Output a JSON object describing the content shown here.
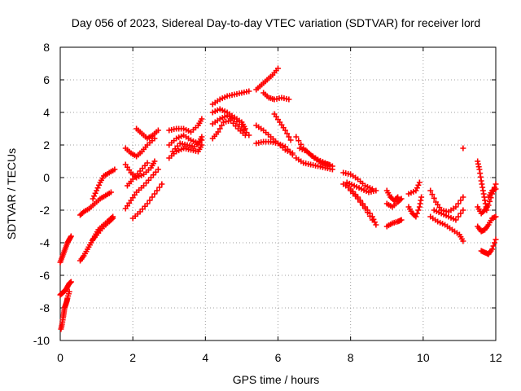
{
  "chart_data": {
    "type": "scatter",
    "title": "Day 056 of 2023, Sidereal Day-to-day VTEC variation (SDTVAR) for receiver lord",
    "xlabel": "GPS time / hours",
    "ylabel": "SDTVAR / TECUs",
    "xlim": [
      0,
      12
    ],
    "ylim": [
      -10,
      8
    ],
    "xticks": [
      0,
      2,
      4,
      6,
      8,
      10,
      12
    ],
    "yticks": [
      -10,
      -8,
      -6,
      -4,
      -2,
      0,
      2,
      4,
      6,
      8
    ],
    "grid": true,
    "marker": "+",
    "marker_color": "#ff0000",
    "series": [
      {
        "name": "s1",
        "x": [
          0.0,
          0.05,
          0.1,
          0.15,
          0.2,
          0.25,
          0.3
        ],
        "y": [
          -5.2,
          -4.9,
          -4.6,
          -4.3,
          -4.0,
          -3.8,
          -3.6
        ]
      },
      {
        "name": "s2",
        "x": [
          0.0,
          0.05,
          0.1,
          0.15,
          0.2,
          0.25,
          0.3
        ],
        "y": [
          -7.2,
          -7.1,
          -7.0,
          -6.9,
          -6.7,
          -6.5,
          -6.4
        ]
      },
      {
        "name": "s3",
        "x": [
          0.02,
          0.05,
          0.08,
          0.1,
          0.12,
          0.15,
          0.18,
          0.2,
          0.25
        ],
        "y": [
          -9.3,
          -9.0,
          -8.6,
          -8.3,
          -8.0,
          -7.8,
          -7.6,
          -7.4,
          -7.0
        ]
      },
      {
        "name": "s4",
        "x": [
          0.55,
          0.65,
          0.8,
          0.95,
          1.1,
          1.25,
          1.4
        ],
        "y": [
          -2.3,
          -2.1,
          -1.9,
          -1.6,
          -1.3,
          -1.1,
          -0.9
        ]
      },
      {
        "name": "s5",
        "x": [
          0.55,
          0.65,
          0.75,
          0.85,
          0.95,
          1.05,
          1.2,
          1.35,
          1.45
        ],
        "y": [
          -5.1,
          -4.8,
          -4.4,
          -4.0,
          -3.6,
          -3.2,
          -2.9,
          -2.6,
          -2.4
        ]
      },
      {
        "name": "s6",
        "x": [
          0.9,
          1.0,
          1.1,
          1.2,
          1.35,
          1.5
        ],
        "y": [
          -1.3,
          -0.8,
          -0.3,
          0.1,
          0.3,
          0.5
        ]
      },
      {
        "name": "s7",
        "x": [
          0.9,
          1.05,
          1.2,
          1.35,
          1.45
        ],
        "y": [
          -3.8,
          -3.4,
          -3.0,
          -2.7,
          -2.5
        ]
      },
      {
        "name": "s8",
        "x": [
          1.8,
          1.95,
          2.1,
          2.25,
          2.4,
          2.6
        ],
        "y": [
          1.8,
          1.5,
          1.3,
          1.6,
          2.0,
          2.4
        ]
      },
      {
        "name": "s9",
        "x": [
          1.8,
          1.95,
          2.1,
          2.3,
          2.5,
          2.6
        ],
        "y": [
          0.8,
          0.3,
          0.0,
          0.2,
          0.6,
          1.0
        ]
      },
      {
        "name": "s10",
        "x": [
          1.8,
          1.95,
          2.1,
          2.3,
          2.5,
          2.7
        ],
        "y": [
          -1.9,
          -1.4,
          -0.9,
          -0.5,
          0.0,
          0.5
        ]
      },
      {
        "name": "s11",
        "x": [
          1.85,
          2.0,
          2.2,
          2.4
        ],
        "y": [
          -0.5,
          -0.1,
          0.4,
          0.9
        ]
      },
      {
        "name": "s12",
        "x": [
          2.0,
          2.2,
          2.4,
          2.6,
          2.8
        ],
        "y": [
          -2.5,
          -2.1,
          -1.6,
          -1.0,
          -0.4
        ]
      },
      {
        "name": "s13",
        "x": [
          2.1,
          2.25,
          2.4,
          2.55,
          2.7
        ],
        "y": [
          3.0,
          2.7,
          2.4,
          2.6,
          2.9
        ]
      },
      {
        "name": "s14",
        "x": [
          3.0,
          3.2,
          3.4,
          3.6,
          3.8,
          3.9
        ],
        "y": [
          2.9,
          3.0,
          3.0,
          2.8,
          3.2,
          3.6
        ]
      },
      {
        "name": "s15",
        "x": [
          3.0,
          3.2,
          3.4,
          3.6,
          3.8,
          3.9
        ],
        "y": [
          2.0,
          2.4,
          2.6,
          2.3,
          2.1,
          2.5
        ]
      },
      {
        "name": "s16",
        "x": [
          3.0,
          3.2,
          3.4,
          3.6,
          3.8,
          3.9
        ],
        "y": [
          1.2,
          1.6,
          1.8,
          1.7,
          1.6,
          2.0
        ]
      },
      {
        "name": "s17",
        "x": [
          3.1,
          3.3,
          3.5,
          3.7,
          3.9
        ],
        "y": [
          1.6,
          2.1,
          2.0,
          1.9,
          2.3
        ]
      },
      {
        "name": "s18",
        "x": [
          4.2,
          4.4,
          4.6,
          4.8,
          5.0,
          5.2
        ],
        "y": [
          4.5,
          4.8,
          5.0,
          5.1,
          5.2,
          5.3
        ]
      },
      {
        "name": "s19",
        "x": [
          4.2,
          4.4,
          4.6,
          4.8,
          5.0,
          5.1
        ],
        "y": [
          4.0,
          4.2,
          4.0,
          3.7,
          3.4,
          3.0
        ]
      },
      {
        "name": "s20",
        "x": [
          4.2,
          4.4,
          4.6,
          4.8,
          5.0,
          5.2
        ],
        "y": [
          3.3,
          3.6,
          3.8,
          3.6,
          3.1,
          2.6
        ]
      },
      {
        "name": "s21",
        "x": [
          4.2,
          4.35,
          4.5,
          4.7,
          4.9,
          5.1
        ],
        "y": [
          2.4,
          2.8,
          3.4,
          3.5,
          3.0,
          2.6
        ]
      },
      {
        "name": "s22",
        "x": [
          5.4,
          5.55,
          5.7,
          5.85,
          6.0
        ],
        "y": [
          5.4,
          5.7,
          6.0,
          6.3,
          6.7
        ]
      },
      {
        "name": "s23",
        "x": [
          5.6,
          5.75,
          5.9,
          6.1,
          6.3
        ],
        "y": [
          5.2,
          4.9,
          4.8,
          4.9,
          4.8
        ]
      },
      {
        "name": "s24",
        "x": [
          5.4,
          5.6,
          5.8,
          6.0,
          6.2,
          6.4
        ],
        "y": [
          3.2,
          2.9,
          2.5,
          2.1,
          1.7,
          1.5
        ]
      },
      {
        "name": "s25",
        "x": [
          5.4,
          5.6,
          5.8,
          6.0,
          6.2,
          6.4
        ],
        "y": [
          2.1,
          2.2,
          2.2,
          2.1,
          1.9,
          1.4
        ]
      },
      {
        "name": "s26",
        "x": [
          5.9,
          6.05,
          6.2,
          6.35
        ],
        "y": [
          3.9,
          3.4,
          2.9,
          2.3
        ]
      },
      {
        "name": "s27",
        "x": [
          6.5,
          6.7,
          6.9,
          7.1,
          7.3,
          7.5
        ],
        "y": [
          2.5,
          1.8,
          1.4,
          1.1,
          0.9,
          0.7
        ]
      },
      {
        "name": "s28",
        "x": [
          6.5,
          6.7,
          6.9,
          7.1,
          7.3,
          7.5
        ],
        "y": [
          1.2,
          0.9,
          0.8,
          0.7,
          0.6,
          0.5
        ]
      },
      {
        "name": "s29",
        "x": [
          6.6,
          6.8,
          7.0,
          7.2,
          7.4
        ],
        "y": [
          1.8,
          1.6,
          1.2,
          0.9,
          0.8
        ]
      },
      {
        "name": "s30",
        "x": [
          7.8,
          8.0,
          8.2,
          8.4,
          8.6
        ],
        "y": [
          0.3,
          0.2,
          -0.1,
          -0.5,
          -0.7
        ]
      },
      {
        "name": "s31",
        "x": [
          7.9,
          8.1,
          8.3,
          8.5,
          8.7
        ],
        "y": [
          -0.3,
          -0.5,
          -0.7,
          -0.9,
          -0.8
        ]
      },
      {
        "name": "s32",
        "x": [
          7.8,
          8.0,
          8.2,
          8.4,
          8.6,
          8.7
        ],
        "y": [
          -0.4,
          -0.7,
          -1.2,
          -1.8,
          -2.4,
          -2.9
        ]
      },
      {
        "name": "s33",
        "x": [
          8.0,
          8.2,
          8.4,
          8.6
        ],
        "y": [
          -0.8,
          -1.3,
          -1.9,
          -2.6
        ]
      },
      {
        "name": "s34",
        "x": [
          9.0,
          9.1,
          9.2,
          9.3
        ],
        "y": [
          -0.8,
          -1.2,
          -1.4,
          -1.2
        ]
      },
      {
        "name": "s35",
        "x": [
          9.0,
          9.15,
          9.3,
          9.4
        ],
        "y": [
          -1.6,
          -1.8,
          -1.5,
          -1.3
        ]
      },
      {
        "name": "s36",
        "x": [
          9.0,
          9.15,
          9.3,
          9.4
        ],
        "y": [
          -3.0,
          -2.8,
          -2.7,
          -2.6
        ]
      },
      {
        "name": "s37",
        "x": [
          9.6,
          9.7,
          9.8,
          9.9,
          9.95
        ],
        "y": [
          -1.8,
          -2.2,
          -2.4,
          -1.8,
          -1.2
        ]
      },
      {
        "name": "s38",
        "x": [
          9.6,
          9.8,
          9.9
        ],
        "y": [
          -1.0,
          -0.8,
          -0.3
        ]
      },
      {
        "name": "s39",
        "x": [
          10.2,
          10.35,
          10.5,
          10.7,
          10.9,
          11.1
        ],
        "y": [
          -0.8,
          -1.5,
          -2.0,
          -2.1,
          -1.8,
          -1.2
        ]
      },
      {
        "name": "s40",
        "x": [
          10.2,
          10.4,
          10.6,
          10.8,
          11.0,
          11.1
        ],
        "y": [
          -2.4,
          -2.7,
          -2.9,
          -3.2,
          -3.5,
          -3.9
        ]
      },
      {
        "name": "s41",
        "x": [
          10.3,
          10.5,
          10.7,
          10.9,
          11.1
        ],
        "y": [
          -2.0,
          -2.2,
          -2.4,
          -2.6,
          -2.0
        ]
      },
      {
        "name": "s42",
        "x": [
          11.1
        ],
        "y": [
          1.8
        ]
      },
      {
        "name": "s43",
        "x": [
          11.5,
          11.55,
          11.6,
          11.65,
          11.7,
          11.75
        ],
        "y": [
          1.0,
          0.5,
          -0.2,
          -0.8,
          -1.4,
          -2.0
        ]
      },
      {
        "name": "s44",
        "x": [
          11.5,
          11.6,
          11.7,
          11.8,
          11.9,
          12.0
        ],
        "y": [
          -3.0,
          -3.3,
          -3.2,
          -2.9,
          -2.5,
          -2.4
        ]
      },
      {
        "name": "s45",
        "x": [
          11.6,
          11.7,
          11.8,
          11.9,
          12.0
        ],
        "y": [
          -4.5,
          -4.6,
          -4.7,
          -4.4,
          -3.8
        ]
      },
      {
        "name": "s46",
        "x": [
          11.5,
          11.6,
          11.7,
          11.8,
          11.9,
          12.0
        ],
        "y": [
          -1.8,
          -2.2,
          -2.0,
          -1.7,
          -1.0,
          -0.4
        ]
      },
      {
        "name": "s47",
        "x": [
          11.8,
          11.9,
          12.0
        ],
        "y": [
          -1.2,
          -0.8,
          -0.7
        ]
      }
    ]
  }
}
